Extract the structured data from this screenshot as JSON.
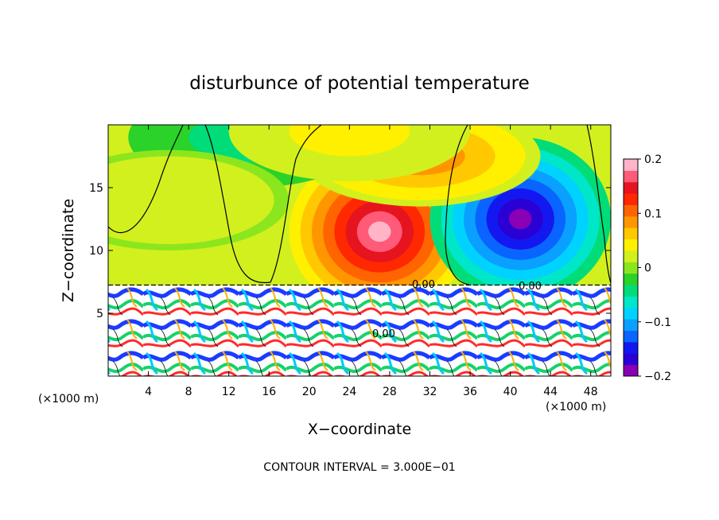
{
  "chart_data": {
    "type": "heatmap",
    "title": "disturbunce of potential temperature",
    "xlabel": "X−coordinate",
    "ylabel": "Z−coordinate",
    "x_unit_label_left": "(×1000 m)",
    "x_unit_label_right": "(×1000 m)",
    "xlim": [
      0,
      50
    ],
    "ylim": [
      0,
      20
    ],
    "x_ticks": [
      4,
      8,
      12,
      16,
      20,
      24,
      28,
      32,
      36,
      40,
      44,
      48
    ],
    "y_ticks": [
      5,
      10,
      15
    ],
    "colorbar": {
      "range": [
        -0.2,
        0.2
      ],
      "tick_values": [
        0.2,
        0.1,
        0,
        -0.1,
        -0.2
      ],
      "tick_labels": [
        "0.2",
        "0.1",
        "0",
        "−0.1",
        "−0.2"
      ]
    },
    "contour_labels": [
      "0.00",
      "0.00",
      "0.00"
    ],
    "footer": "CONTOUR INTERVAL = 3.000E−01",
    "features": [
      {
        "x": 27,
        "z": 11.5,
        "value": 0.2
      },
      {
        "x": 41,
        "z": 12.5,
        "value": -0.2
      },
      {
        "x": 31,
        "z": 17.5,
        "value": 0.1
      },
      {
        "x": 14,
        "z": 19,
        "value": -0.05
      },
      {
        "x": 24,
        "z": 19.5,
        "value": 0.05
      },
      {
        "x": 6,
        "z": 14,
        "value": 0.03
      }
    ]
  }
}
